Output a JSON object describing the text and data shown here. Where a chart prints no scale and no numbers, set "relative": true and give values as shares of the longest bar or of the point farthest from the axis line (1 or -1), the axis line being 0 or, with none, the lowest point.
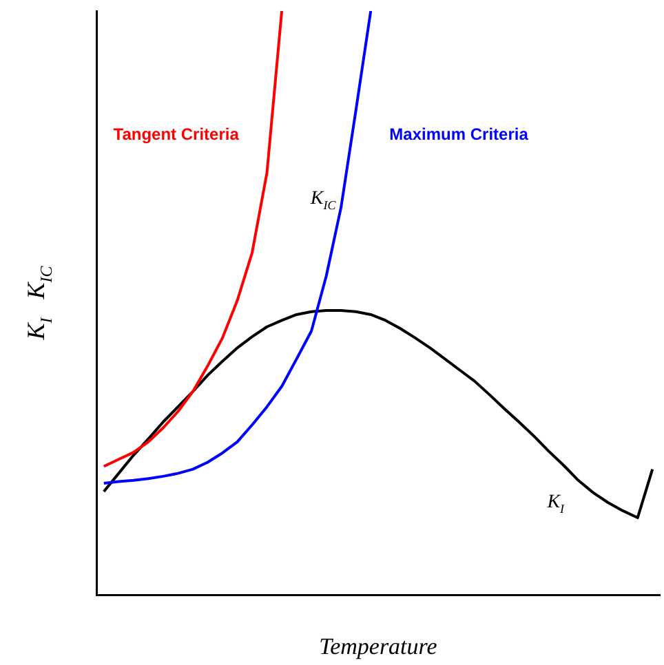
{
  "chart_data": {
    "type": "line",
    "relative": true,
    "xlabel": "Temperature",
    "ylabel": "K$_{I}$   K$_{IC}$",
    "legend": false,
    "grid": false,
    "marker": "none",
    "line_style": "solid",
    "categories": [
      null,
      null,
      null,
      null,
      null,
      null,
      null,
      null,
      null,
      null,
      null,
      null,
      null,
      null,
      null,
      null,
      null,
      null,
      null,
      null,
      null,
      null,
      null,
      null,
      null,
      null,
      null,
      null,
      null,
      null,
      null,
      null,
      null,
      null,
      null,
      null,
      null,
      null
    ],
    "annotations": [
      "K$_{IC}$"
    ],
    "series": [
      {
        "name": "Tangent Criteria",
        "color": "#ff0000",
        "values": [
          0.22,
          0.232,
          0.244,
          0.262,
          0.286,
          0.314,
          0.348,
          0.392,
          0.44,
          0.504,
          0.586,
          0.723,
          1,
          null,
          null,
          null,
          null,
          null,
          null,
          null,
          null,
          null,
          null,
          null,
          null,
          null,
          null,
          null,
          null,
          null,
          null,
          null,
          null,
          null,
          null,
          null,
          null,
          null
        ]
      },
      {
        "name": "Maximum Criteria",
        "color": "#0000ff",
        "values": [
          0.191,
          0.194,
          0.196,
          0.199,
          0.203,
          0.208,
          0.215,
          0.227,
          0.243,
          0.262,
          0.291,
          0.322,
          0.357,
          0.404,
          0.452,
          0.546,
          0.664,
          0.83,
          1,
          null,
          null,
          null,
          null,
          null,
          null,
          null,
          null,
          null,
          null,
          null,
          null,
          null,
          null,
          null,
          null,
          null,
          null,
          null
        ]
      },
      {
        "name": "K$_{I}$",
        "color": "#000000",
        "values": [
          0.177,
          0.208,
          0.239,
          0.267,
          0.296,
          0.322,
          0.348,
          0.376,
          0.4,
          0.423,
          0.442,
          0.459,
          0.47,
          0.48,
          0.485,
          0.487,
          0.487,
          0.485,
          0.48,
          0.47,
          0.456,
          0.44,
          0.423,
          0.404,
          0.385,
          0.366,
          0.343,
          0.319,
          0.296,
          0.272,
          0.246,
          0.222,
          0.196,
          0.175,
          0.158,
          0.144,
          0.132,
          0.215
        ]
      }
    ]
  }
}
